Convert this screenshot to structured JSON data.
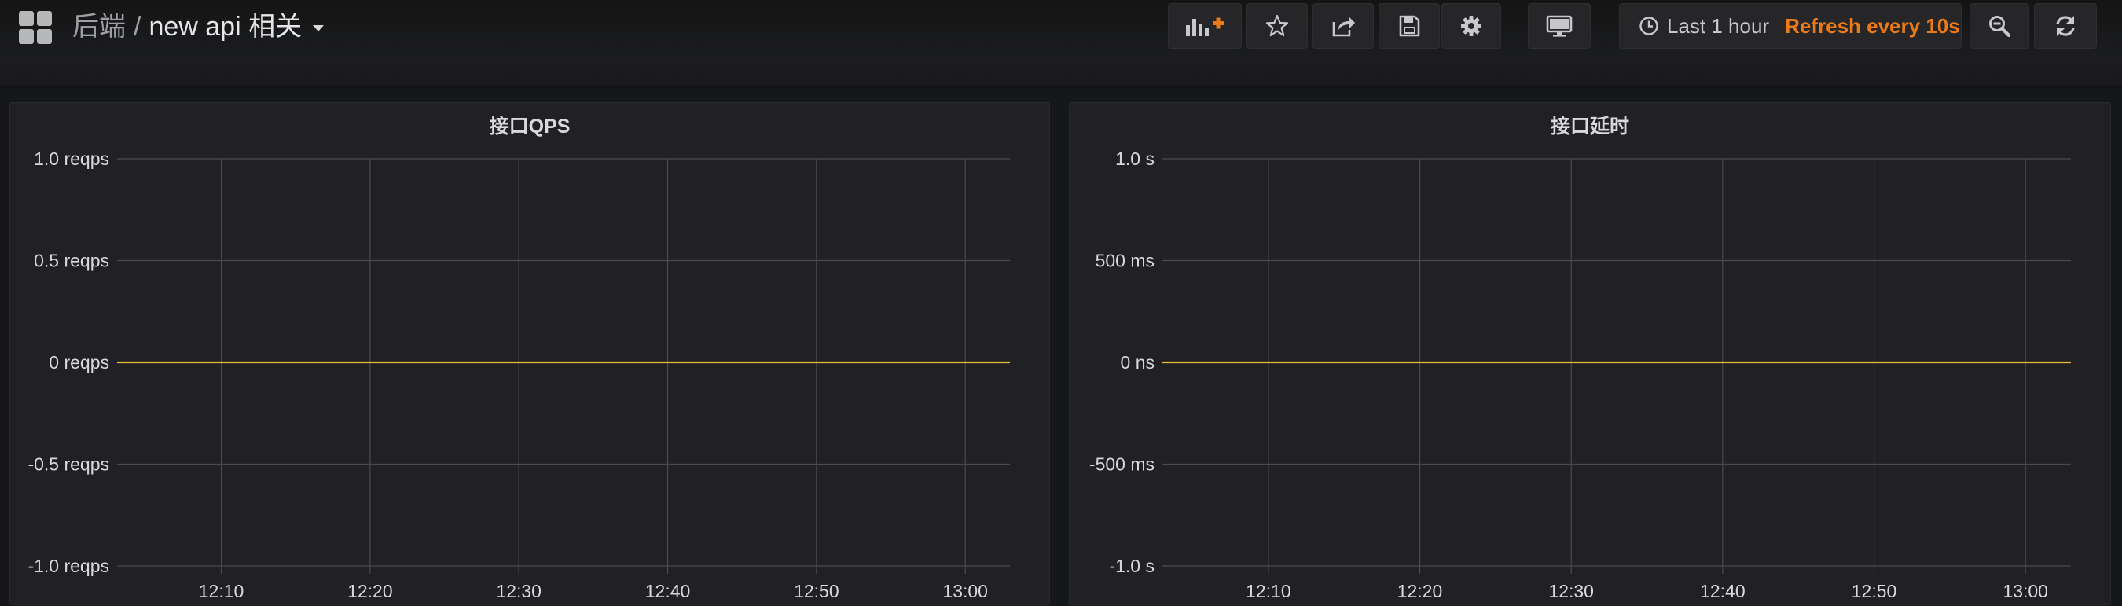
{
  "header": {
    "folder": "后端",
    "separator": "/",
    "title": "new api 相关"
  },
  "toolbar": {
    "buttons": [
      {
        "name": "add-panel-button",
        "icon": "bar-chart-plus-icon"
      },
      {
        "name": "star-button",
        "icon": "star-icon"
      },
      {
        "name": "share-button",
        "icon": "share-icon"
      },
      {
        "name": "save-button",
        "icon": "save-icon"
      },
      {
        "name": "settings-button",
        "icon": "gear-icon"
      },
      {
        "name": "view-mode-button",
        "icon": "monitor-icon"
      },
      {
        "name": "zoom-out-button",
        "icon": "zoom-out-icon"
      },
      {
        "name": "refresh-button",
        "icon": "refresh-icon"
      }
    ]
  },
  "time_picker": {
    "icon": "clock-icon",
    "range_label": "Last 1 hour",
    "refresh_label": "Refresh every 10s"
  },
  "colors": {
    "accent": "#eb7b18",
    "series": "#eab839",
    "panel_bg": "#212124",
    "grid": "#4a4b4e"
  },
  "chart_data": [
    {
      "type": "line",
      "title": "接口QPS",
      "y_ticks": [
        "1.0 reqps",
        "0.5 reqps",
        "0 reqps",
        "-0.5 reqps",
        "-1.0 reqps"
      ],
      "ylim": [
        -1.0,
        1.0
      ],
      "y_values": [
        1.0,
        0.5,
        0,
        -0.5,
        -1.0
      ],
      "x_ticks": [
        "12:10",
        "12:20",
        "12:30",
        "12:40",
        "12:50",
        "13:00"
      ],
      "x_range": [
        "12:03",
        "13:03"
      ],
      "grid": true,
      "series": [
        {
          "color": "#eab839",
          "x": [
            "12:03",
            "13:03"
          ],
          "y": [
            0,
            0
          ]
        }
      ]
    },
    {
      "type": "line",
      "title": "接口延时",
      "y_ticks": [
        "1.0 s",
        "500 ms",
        "0 ns",
        "-500 ms",
        "-1.0 s"
      ],
      "ylim": [
        -1.0,
        1.0
      ],
      "y_values": [
        1.0,
        0.5,
        0,
        -0.5,
        -1.0
      ],
      "x_ticks": [
        "12:10",
        "12:20",
        "12:30",
        "12:40",
        "12:50",
        "13:00"
      ],
      "x_range": [
        "12:03",
        "13:03"
      ],
      "grid": true,
      "series": [
        {
          "color": "#eab839",
          "x": [
            "12:03",
            "13:03"
          ],
          "y": [
            0,
            0
          ]
        }
      ]
    }
  ]
}
